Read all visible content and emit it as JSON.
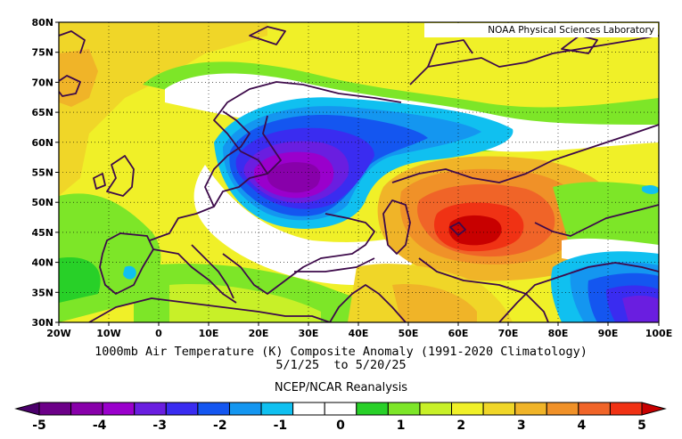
{
  "credit": "NOAA Physical Sciences Laboratory",
  "title_line1": "1000mb Air Temperature (K) Composite Anomaly (1991-2020 Climatology)",
  "title_line2": "5/1/25  to 5/20/25",
  "subtitle": "NCEP/NCAR Reanalysis",
  "lat_labels": [
    "80N",
    "75N",
    "70N",
    "65N",
    "60N",
    "55N",
    "50N",
    "45N",
    "40N",
    "35N",
    "30N"
  ],
  "lon_labels": [
    "20W",
    "10W",
    "0",
    "10E",
    "20E",
    "30E",
    "40E",
    "50E",
    "60E",
    "70E",
    "80E",
    "90E",
    "100E"
  ],
  "colorbar": {
    "labels": [
      "-5",
      "-4",
      "-3",
      "-2",
      "-1",
      "0",
      "1",
      "2",
      "3",
      "4",
      "5"
    ],
    "colors": [
      "#4b006b",
      "#6c0088",
      "#8800aa",
      "#9a00cc",
      "#6a1ee0",
      "#3a2cf0",
      "#1456f0",
      "#1496f0",
      "#10c0f0",
      "#ffffff",
      "#ffffff",
      "#28d028",
      "#7de628",
      "#c8f028",
      "#f0f028",
      "#f0d628",
      "#f0b428",
      "#f09128",
      "#f06428",
      "#f03214",
      "#c80000"
    ]
  },
  "map": {
    "lon_range": [
      -20,
      100
    ],
    "lat_range": [
      30,
      80
    ],
    "anomaly_centers": [
      {
        "region": "eastern-europe-cold",
        "lon": 27,
        "lat": 53,
        "value": -4.5
      },
      {
        "region": "central-asia-warm",
        "lon": 63,
        "lat": 45,
        "value": 4.5
      },
      {
        "region": "south-asia-cold",
        "lon": 91,
        "lat": 33,
        "value": -2.5
      }
    ]
  }
}
